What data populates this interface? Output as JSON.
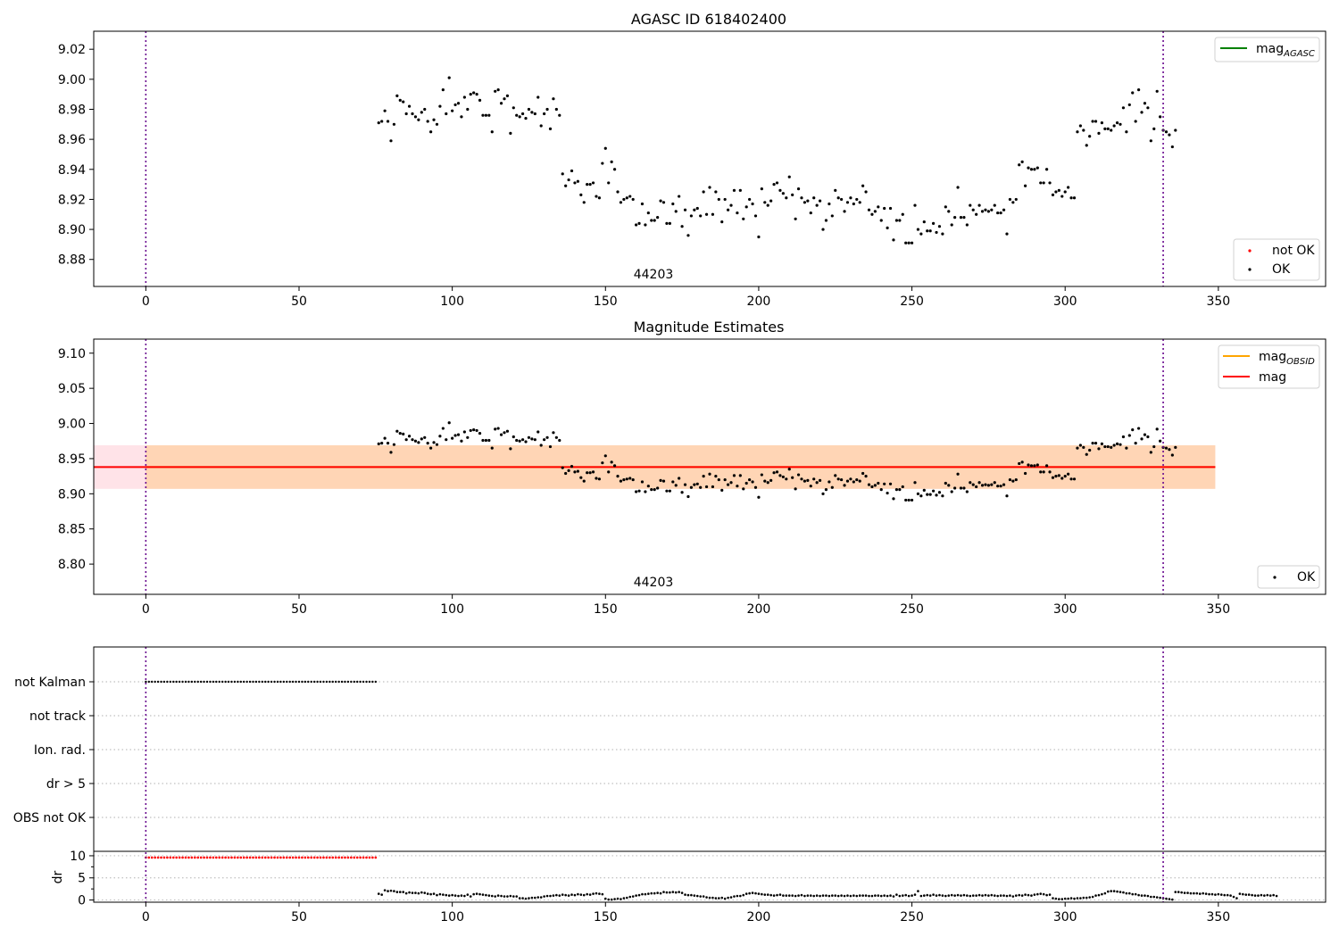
{
  "colors": {
    "ok": "#000000",
    "not_ok": "#ff0000",
    "mag_agasc": "#008000",
    "mag_obsid": "#ffa500",
    "mag": "#ff0000",
    "band_orange": "#ffa500",
    "band_pink": "#ffc0cb",
    "vline": "#6a0a8f"
  },
  "chart_data": [
    {
      "type": "scatter",
      "title": "AGASC ID 618402400",
      "obsid_label": "44203",
      "xlim": [
        -17,
        385
      ],
      "ylim": [
        8.862,
        9.032
      ],
      "xticks": [
        "0",
        "50",
        "100",
        "150",
        "200",
        "250",
        "300",
        "350"
      ],
      "yticks": [
        "8.88",
        "8.90",
        "8.92",
        "8.94",
        "8.96",
        "8.98",
        "9.00",
        "9.02"
      ],
      "vlines_x": [
        0,
        332
      ],
      "legend_top": {
        "mag_agasc": "mag",
        "mag_agasc_sub": "AGASC"
      },
      "legend_bottom": {
        "not_ok": "not OK",
        "ok": "OK"
      },
      "series": [
        {
          "name": "OK",
          "x_start": 76,
          "x_step": 1,
          "values": [
            8.971,
            8.972,
            8.979,
            8.972,
            8.959,
            8.97,
            8.989,
            8.986,
            8.985,
            8.977,
            8.982,
            8.977,
            8.975,
            8.973,
            8.978,
            8.98,
            8.972,
            8.965,
            8.973,
            8.97,
            8.982,
            8.993,
            8.977,
            9.001,
            8.979,
            8.983,
            8.984,
            8.975,
            8.988,
            8.98,
            8.99,
            8.991,
            8.99,
            8.986,
            8.976,
            8.976,
            8.976,
            8.965,
            8.992,
            8.993,
            8.984,
            8.987,
            8.989,
            8.964,
            8.981,
            8.976,
            8.975,
            8.977,
            8.974,
            8.98,
            8.978,
            8.977,
            8.988,
            8.969,
            8.977,
            8.98,
            8.967,
            8.987,
            8.98,
            8.976,
            8.937,
            8.929,
            8.933,
            8.939,
            8.931,
            8.932,
            8.923,
            8.918,
            8.93,
            8.93,
            8.931,
            8.922,
            8.921,
            8.944,
            8.954,
            8.931,
            8.945,
            8.94,
            8.925,
            8.918,
            8.92,
            8.921,
            8.922,
            8.92,
            8.903,
            8.904,
            8.917,
            8.903,
            8.911,
            8.906,
            8.906,
            8.908,
            8.919,
            8.918,
            8.904,
            8.904,
            8.917,
            8.912,
            8.922,
            8.902,
            8.913,
            8.896,
            8.909,
            8.913,
            8.914,
            8.909,
            8.925,
            8.91,
            8.928,
            8.91,
            8.925,
            8.92,
            8.905,
            8.92,
            8.913,
            8.916,
            8.926,
            8.911,
            8.926,
            8.907,
            8.915,
            8.92,
            8.917,
            8.909,
            8.895,
            8.927,
            8.918,
            8.916,
            8.919,
            8.93,
            8.931,
            8.926,
            8.924,
            8.921,
            8.935,
            8.923,
            8.907,
            8.927,
            8.921,
            8.918,
            8.919,
            8.911,
            8.921,
            8.916,
            8.919,
            8.9,
            8.906,
            8.917,
            8.909,
            8.926,
            8.921,
            8.92,
            8.912,
            8.918,
            8.921,
            8.917,
            8.92,
            8.918,
            8.929,
            8.925,
            8.913,
            8.91,
            8.912,
            8.915,
            8.906,
            8.914,
            8.901,
            8.914,
            8.893,
            8.906,
            8.906,
            8.91,
            8.891,
            8.891,
            8.891,
            8.916,
            8.9,
            8.897,
            8.905,
            8.899,
            8.899,
            8.904,
            8.898,
            8.902,
            8.897,
            8.915,
            8.912,
            8.903,
            8.908,
            8.928,
            8.908,
            8.908,
            8.903,
            8.916,
            8.913,
            8.91,
            8.916,
            8.912,
            8.913,
            8.912,
            8.913,
            8.916,
            8.911,
            8.911,
            8.913,
            8.897,
            8.92,
            8.918,
            8.92,
            8.943,
            8.945,
            8.929,
            8.941,
            8.94,
            8.94,
            8.941,
            8.931,
            8.931,
            8.94,
            8.931,
            8.923,
            8.925,
            8.926,
            8.922,
            8.925,
            8.928,
            8.921,
            8.921,
            8.965,
            8.969,
            8.966,
            8.956,
            8.962,
            8.972,
            8.972,
            8.964,
            8.971,
            8.967,
            8.967,
            8.966,
            8.969,
            8.971,
            8.97,
            8.981,
            8.965,
            8.983,
            8.991,
            8.972,
            8.993,
            8.978,
            8.984,
            8.981,
            8.959,
            8.967,
            8.992,
            8.975,
            8.966,
            8.965,
            8.963,
            8.955,
            8.966
          ]
        }
      ]
    },
    {
      "type": "scatter",
      "title": "Magnitude Estimates",
      "obsid_label": "44203",
      "xlim": [
        -17,
        385
      ],
      "ylim": [
        8.757,
        9.12
      ],
      "xticks": [
        "0",
        "50",
        "100",
        "150",
        "200",
        "250",
        "300",
        "350"
      ],
      "yticks": [
        "8.80",
        "8.85",
        "8.90",
        "8.95",
        "9.00",
        "9.05",
        "9.10"
      ],
      "vlines_x": [
        0,
        332
      ],
      "mag_obsid": 8.938,
      "mag_obsid_band": [
        8.907,
        8.969
      ],
      "mag_obsid_x": [
        0,
        349
      ],
      "mag": 8.938,
      "mag_band": [
        8.907,
        8.969
      ],
      "mag_x": [
        -17,
        349
      ],
      "legend_top": {
        "mag_obsid": "mag",
        "mag_obsid_sub": "OBSID",
        "mag": "mag"
      },
      "legend_bottom": {
        "ok": "OK"
      },
      "series": [
        {
          "name": "OK",
          "same_as_panel": 0
        }
      ]
    },
    {
      "type": "scatter",
      "xlim": [
        -17,
        385
      ],
      "vlines_x": [
        0,
        332
      ],
      "flag_labels": [
        "not Kalman",
        "not track",
        "Ion. rad.",
        "dr > 5",
        "OBS not OK"
      ],
      "flags": {
        "not Kalman": {
          "x_start": 0,
          "x_end": 75
        }
      },
      "dr": {
        "ylabel": "dr",
        "ylim": [
          -0.5,
          11
        ],
        "yticks": [
          "0",
          "5",
          "10"
        ],
        "red_x_start": 0,
        "red_x_end": 75,
        "red_value": 9.6,
        "x_start": 76,
        "x_step": 1,
        "values": [
          1.4,
          1.2,
          2.2,
          2.0,
          2.1,
          2.0,
          1.8,
          1.8,
          1.8,
          1.5,
          1.7,
          1.6,
          1.6,
          1.5,
          1.7,
          1.6,
          1.4,
          1.3,
          1.4,
          1.1,
          1.3,
          1.2,
          1.1,
          1.0,
          1.1,
          1.0,
          0.9,
          1.0,
          0.9,
          1.2,
          0.8,
          1.3,
          1.4,
          1.3,
          1.2,
          1.1,
          1.0,
          0.9,
          0.8,
          1.0,
          0.9,
          0.8,
          0.8,
          0.9,
          0.8,
          0.8,
          0.4,
          0.4,
          0.3,
          0.4,
          0.5,
          0.5,
          0.6,
          0.6,
          0.8,
          0.9,
          0.9,
          1.0,
          1.1,
          1.0,
          1.2,
          1.1,
          1.0,
          1.2,
          1.1,
          1.3,
          1.2,
          1.1,
          1.3,
          1.2,
          1.4,
          1.5,
          1.4,
          1.3,
          0.3,
          0.1,
          0.1,
          0.2,
          0.3,
          0.2,
          0.4,
          0.5,
          0.7,
          0.8,
          1.0,
          1.1,
          1.3,
          1.3,
          1.4,
          1.5,
          1.5,
          1.6,
          1.5,
          1.8,
          1.7,
          1.7,
          1.8,
          1.7,
          1.8,
          1.6,
          1.2,
          1.1,
          1.1,
          1.0,
          0.9,
          0.8,
          0.8,
          0.6,
          0.5,
          0.5,
          0.4,
          0.4,
          0.5,
          0.3,
          0.5,
          0.6,
          0.8,
          0.9,
          0.9,
          1.1,
          1.4,
          1.5,
          1.6,
          1.5,
          1.4,
          1.3,
          1.2,
          1.2,
          1.1,
          1.0,
          1.1,
          1.2,
          1.0,
          1.0,
          1.0,
          1.0,
          0.9,
          1.0,
          1.1,
          0.9,
          1.0,
          1.0,
          0.9,
          1.0,
          0.9,
          1.0,
          1.0,
          0.9,
          1.0,
          1.0,
          0.9,
          1.0,
          0.9,
          1.0,
          0.9,
          1.0,
          0.9,
          1.0,
          1.0,
          1.0,
          0.9,
          0.9,
          1.0,
          1.0,
          0.9,
          1.0,
          0.9,
          1.0,
          0.8,
          1.2,
          0.9,
          1.0,
          1.1,
          0.9,
          1.0,
          1.2,
          2.0,
          0.9,
          1.0,
          1.1,
          1.0,
          1.2,
          1.0,
          1.1,
          1.0,
          0.9,
          1.0,
          1.1,
          1.0,
          1.1,
          1.0,
          1.1,
          1.0,
          0.9,
          1.0,
          1.0,
          1.1,
          1.0,
          1.1,
          1.0,
          1.1,
          1.0,
          0.9,
          1.0,
          1.0,
          0.9,
          1.0,
          0.8,
          1.0,
          1.1,
          1.0,
          1.2,
          1.1,
          1.0,
          1.2,
          1.3,
          1.4,
          1.3,
          1.1,
          1.2,
          0.4,
          0.3,
          0.2,
          0.2,
          0.3,
          0.3,
          0.4,
          0.3,
          0.4,
          0.4,
          0.5,
          0.5,
          0.6,
          0.7,
          1.0,
          1.1,
          1.3,
          1.5,
          1.9,
          2.0,
          2.0,
          1.9,
          1.8,
          1.7,
          1.5,
          1.5,
          1.3,
          1.3,
          1.1,
          1.0,
          1.0,
          0.9,
          0.7,
          0.7,
          0.6,
          0.5,
          0.4,
          0.3,
          0.2,
          0.1,
          1.8,
          1.8,
          1.7,
          1.6,
          1.6,
          1.5,
          1.5,
          1.5,
          1.4,
          1.5,
          1.4,
          1.3,
          1.3,
          1.2,
          1.3,
          1.2,
          1.1,
          1.1,
          1.0,
          0.7,
          0.4,
          1.4,
          1.3,
          1.2,
          1.2,
          1.1,
          1.0,
          1.0,
          1.1,
          1.0,
          1.1,
          1.0,
          1.1,
          0.9
        ]
      }
    }
  ]
}
